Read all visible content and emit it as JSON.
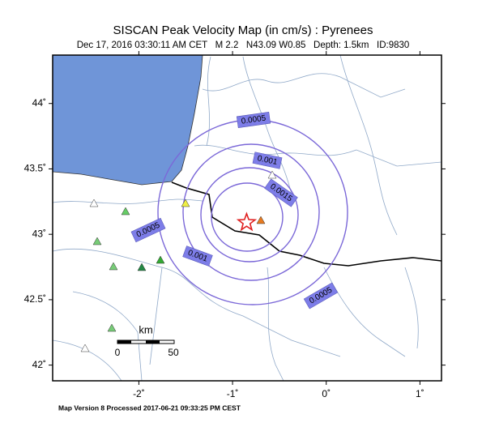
{
  "header": {
    "title": "SISCAN Peak Velocity Map (in cm/s) : Pyrenees",
    "subtitle": "Dec 17, 2016 03:30:11 AM CET   M 2.2   N43.09 W0.85   Depth: 1.5km   ID:9830"
  },
  "map": {
    "lon_range": [
      -2.92,
      1.23
    ],
    "lat_range": [
      41.88,
      44.37
    ],
    "lon_ticks": [
      {
        "value": -2,
        "label": "-2˚"
      },
      {
        "value": -1,
        "label": "-1˚"
      },
      {
        "value": 0,
        "label": "0˚"
      },
      {
        "value": 1,
        "label": "1˚"
      }
    ],
    "lat_ticks": [
      {
        "value": 42,
        "label": "42˚"
      },
      {
        "value": 42.5,
        "label": "42.5˚"
      },
      {
        "value": 43,
        "label": "43˚"
      },
      {
        "value": 43.5,
        "label": "43.5˚"
      },
      {
        "value": 44,
        "label": "44˚"
      }
    ],
    "epicenter": {
      "lat": 43.09,
      "lon": -0.85
    }
  },
  "contour_labels": [
    "0.0005",
    "0.001",
    "0.0015",
    "0.0005",
    "0.001",
    "0.0005"
  ],
  "scale_bar": {
    "unit": "km",
    "labels": [
      "0",
      "50"
    ]
  },
  "footer": "Map Version 8 Processed 2017-06-21 09:33:25 PM CEST"
}
